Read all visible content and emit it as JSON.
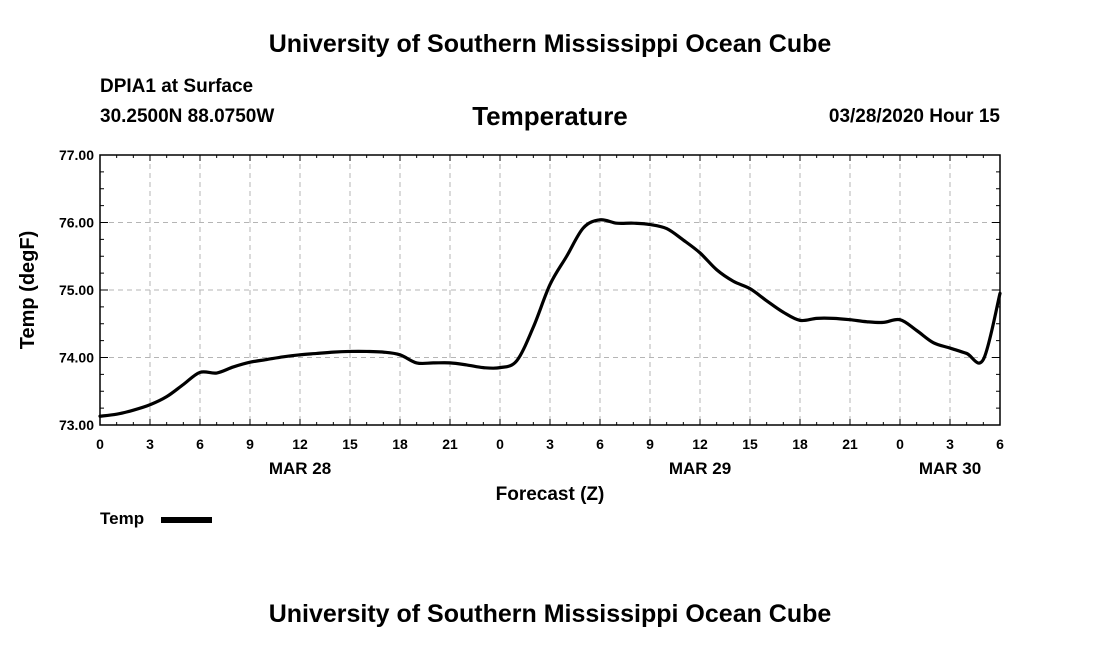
{
  "header": {
    "top_title": "University of Southern Mississippi Ocean Cube",
    "station": "DPIA1 at Surface",
    "coords": "30.2500N 88.0750W",
    "variable": "Temperature",
    "timestamp": "03/28/2020 Hour 15"
  },
  "footer": {
    "bottom_title": "University of Southern Mississippi Ocean Cube"
  },
  "chart_data": {
    "type": "line",
    "title": "Temperature",
    "xlabel": "Forecast (Z)",
    "ylabel": "Temp (degF)",
    "ylim": [
      73.0,
      77.0
    ],
    "xlim": [
      0,
      54
    ],
    "y_ticks": [
      "73.00",
      "74.00",
      "75.00",
      "76.00",
      "77.00"
    ],
    "x_tick_labels": [
      "0",
      "3",
      "6",
      "9",
      "12",
      "15",
      "18",
      "21",
      "0",
      "3",
      "6",
      "9",
      "12",
      "15",
      "18",
      "21",
      "0",
      "3",
      "6"
    ],
    "date_labels": [
      {
        "label": "MAR 28",
        "hour": 12
      },
      {
        "label": "MAR 29",
        "hour": 36
      },
      {
        "label": "MAR 30",
        "hour": 51
      }
    ],
    "grid": true,
    "legend": {
      "position": "bottom-left",
      "entries": [
        "Temp"
      ]
    },
    "series": [
      {
        "name": "Temp",
        "color": "#000000",
        "x": [
          0,
          1,
          2,
          3,
          4,
          5,
          6,
          7,
          8,
          9,
          10,
          11,
          12,
          13,
          14,
          15,
          16,
          17,
          18,
          19,
          20,
          21,
          22,
          23,
          24,
          25,
          26,
          27,
          28,
          29,
          30,
          31,
          32,
          33,
          34,
          35,
          36,
          37,
          38,
          39,
          40,
          41,
          42,
          43,
          44,
          45,
          46,
          47,
          48,
          49,
          50,
          51,
          52,
          53,
          54
        ],
        "y": [
          73.13,
          73.16,
          73.22,
          73.3,
          73.42,
          73.6,
          73.78,
          73.77,
          73.86,
          73.93,
          73.97,
          74.01,
          74.04,
          74.06,
          74.08,
          74.09,
          74.09,
          74.08,
          74.04,
          73.92,
          73.92,
          73.92,
          73.89,
          73.85,
          73.85,
          73.95,
          74.45,
          75.08,
          75.5,
          75.92,
          76.04,
          75.99,
          75.99,
          75.97,
          75.91,
          75.74,
          75.55,
          75.3,
          75.13,
          75.02,
          74.84,
          74.67,
          74.55,
          74.58,
          74.58,
          74.56,
          74.53,
          74.52,
          74.56,
          74.4,
          74.22,
          74.14,
          74.06,
          73.97,
          74.95
        ]
      }
    ]
  }
}
